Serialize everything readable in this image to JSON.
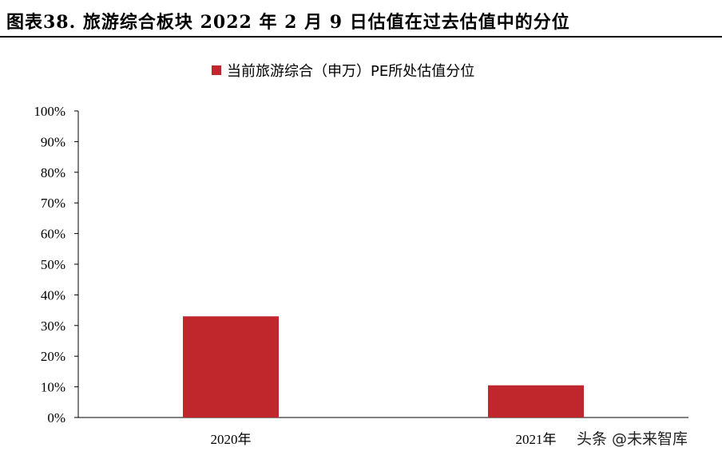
{
  "figure_title": "图表38. 旅游综合板块 2022 年 2 月 9 日估值在过去估值中的分位",
  "watermark": "头条 @未来智库",
  "colors": {
    "bar": "#C0272D"
  },
  "chart_data": {
    "type": "bar",
    "categories": [
      "2020年",
      "2021年"
    ],
    "series": [
      {
        "name": "当前旅游综合（申万）PE所处估值分位",
        "values": [
          33,
          10.5
        ]
      }
    ],
    "yticks": [
      "0%",
      "10%",
      "20%",
      "30%",
      "40%",
      "50%",
      "60%",
      "70%",
      "80%",
      "90%",
      "100%"
    ],
    "ylim": [
      0,
      100
    ],
    "grid": false,
    "legend_position": "top-center"
  }
}
